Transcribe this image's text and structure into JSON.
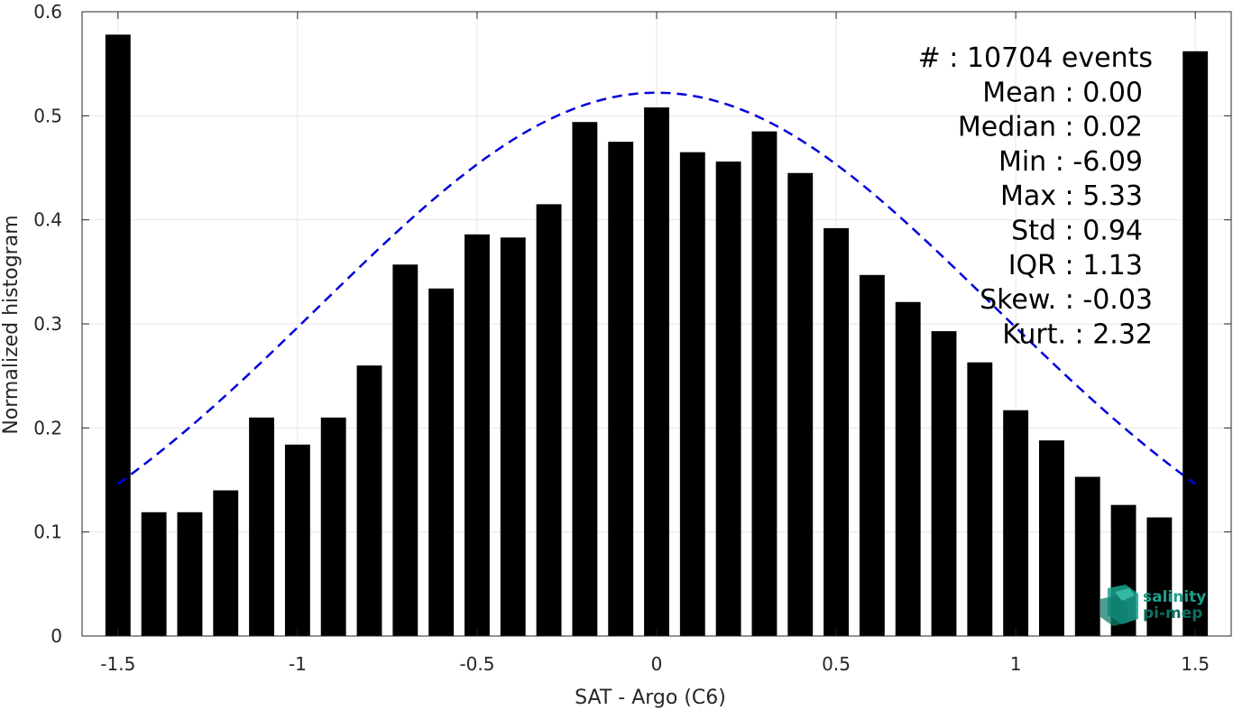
{
  "chart_data": {
    "type": "bar",
    "xlabel": "SAT - Argo (C6)",
    "ylabel": "Normalized histogram",
    "xlim": [
      -1.6,
      1.6
    ],
    "ylim": [
      0,
      0.6
    ],
    "grid": true,
    "xticks": [
      -1.5,
      -1,
      -0.5,
      0,
      0.5,
      1,
      1.5
    ],
    "xtick_labels": [
      "-1.5",
      "-1",
      "-0.5",
      "0",
      "0.5",
      "1",
      "1.5"
    ],
    "yticks": [
      0,
      0.1,
      0.2,
      0.3,
      0.4,
      0.5,
      0.6
    ],
    "ytick_labels": [
      "0",
      "0.1",
      "0.2",
      "0.3",
      "0.4",
      "0.5",
      "0.6"
    ],
    "bar_color": "#000000",
    "bar_width": 0.07,
    "x": [
      -1.5,
      -1.4,
      -1.3,
      -1.2,
      -1.1,
      -1.0,
      -0.9,
      -0.8,
      -0.7,
      -0.6,
      -0.5,
      -0.4,
      -0.3,
      -0.2,
      -0.1,
      0.0,
      0.1,
      0.2,
      0.3,
      0.4,
      0.5,
      0.6,
      0.7,
      0.8,
      0.9,
      1.0,
      1.1,
      1.2,
      1.3,
      1.4,
      1.5
    ],
    "values": [
      0.578,
      0.119,
      0.119,
      0.14,
      0.21,
      0.184,
      0.21,
      0.26,
      0.357,
      0.334,
      0.386,
      0.383,
      0.415,
      0.494,
      0.475,
      0.508,
      0.465,
      0.456,
      0.485,
      0.445,
      0.392,
      0.347,
      0.321,
      0.293,
      0.263,
      0.217,
      0.188,
      0.153,
      0.126,
      0.114,
      0.562
    ],
    "fit_curve": {
      "color": "#0000dd",
      "style": "dashed",
      "mean": 0.0,
      "std": 0.94,
      "x_range": [
        -1.5,
        1.5
      ],
      "peak": 0.5222
    },
    "stats": [
      "#  : 10704 events",
      "Mean : 0.00",
      "Median : 0.02",
      "Min : -6.09",
      "Max : 5.33",
      "Std : 0.94",
      "IQR : 1.13",
      "Skew. : -0.03",
      "Kurt. : 2.32"
    ]
  },
  "logo": {
    "line1": "salinity",
    "line2": "pi-mep",
    "color": "#1aa08c"
  }
}
